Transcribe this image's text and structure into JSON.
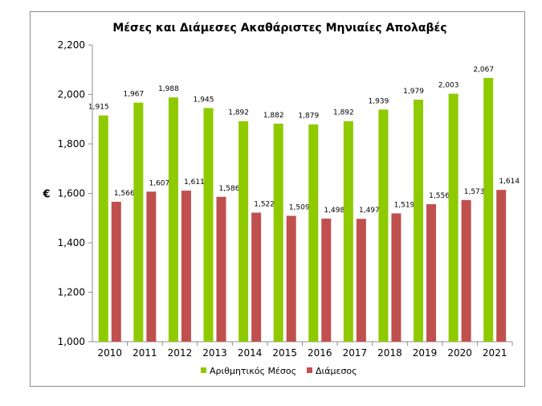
{
  "chart_data": {
    "type": "bar",
    "title": "Μέσες και Διάμεσες Ακαθάριστες Μηνιαίες Απολαβές",
    "ylabel": "€",
    "xlabel": "",
    "ylim": [
      1000,
      2200
    ],
    "yticks": [
      "1,000",
      "1,200",
      "1,400",
      "1,600",
      "1,800",
      "2,000",
      "2,200"
    ],
    "ytick_values": [
      1000,
      1200,
      1400,
      1600,
      1800,
      2000,
      2200
    ],
    "grid": false,
    "legend_position": "bottom",
    "categories": [
      "2010",
      "2011",
      "2012",
      "2013",
      "2014",
      "2015",
      "2016",
      "2017",
      "2018",
      "2019",
      "2020",
      "2021"
    ],
    "series": [
      {
        "name": "Αριθμητικός Μέσος",
        "color": "#8fca00",
        "values": [
          1915,
          1967,
          1988,
          1945,
          1892,
          1882,
          1879,
          1892,
          1939,
          1979,
          2003,
          2067
        ],
        "labels": [
          "1,915",
          "1,967",
          "1,988",
          "1,945",
          "1,892",
          "1,882",
          "1,879",
          "1,892",
          "1,939",
          "1,979",
          "2,003",
          "2,067"
        ]
      },
      {
        "name": "Διάμεσος",
        "color": "#c0504d",
        "values": [
          1566,
          1607,
          1611,
          1586,
          1522,
          1509,
          1498,
          1497,
          1519,
          1556,
          1573,
          1614
        ],
        "labels": [
          "1,566",
          "1,607",
          "1,611",
          "1,586",
          "1,522",
          "1,509",
          "1,498",
          "1,497",
          "1,519",
          "1,556",
          "1,573",
          "1,614"
        ]
      }
    ]
  }
}
